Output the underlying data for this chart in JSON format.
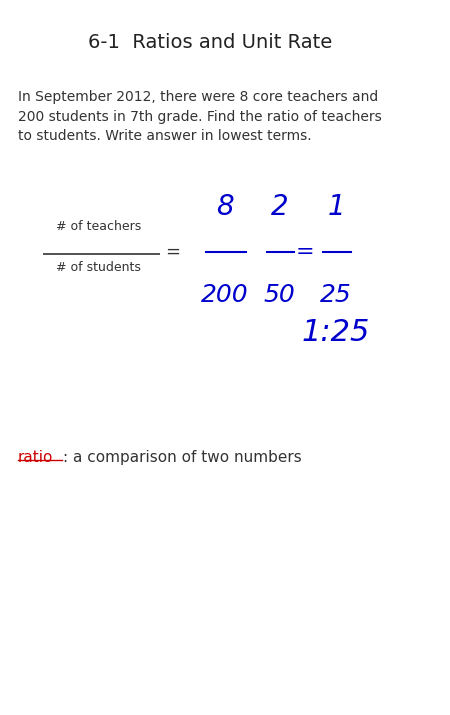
{
  "title": "6-1  Ratios and Unit Rate",
  "title_fontsize": 14,
  "title_color": "#222222",
  "body_text": "In September 2012, there were 8 core teachers and\n200 students in 7th grade. Find the ratio of teachers\nto students. Write answer in lowest terms.",
  "body_fontsize": 10,
  "body_color": "#333333",
  "label_numerator": "# of teachers",
  "label_denominator": "# of students",
  "label_fontsize": 9,
  "label_color": "#333333",
  "equals_sign": "=",
  "handwritten_color": "#0000cc",
  "ratio_word": "ratio",
  "ratio_color": "#cc0000",
  "ratio_definition": ": a comparison of two numbers",
  "ratio_fontsize": 11,
  "background_color": "#ffffff"
}
